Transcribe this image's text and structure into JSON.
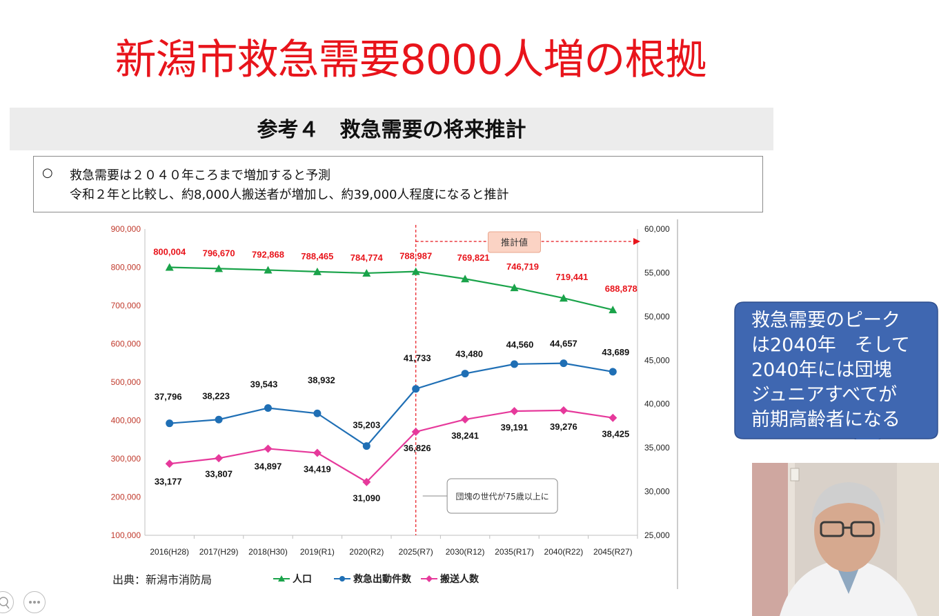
{
  "slide": {
    "title": "新潟市救急需要8000人増の根拠",
    "subtitle": "参考４　救急需要の将来推計",
    "note_bullet": "○",
    "note_line1": "救急需要は２０４０年ころまで増加すると予測",
    "note_line2": "令和２年と比較し、約8,000人搬送者が増加し、約39,000人程度になると推計",
    "source": "出典：新潟市消防局",
    "callout": "救急需要のピーク\nは2040年　そして\n2040年には団塊\nジュニアすべてが\n前期高齢者になる",
    "colors": {
      "title": "#e8141b",
      "callout": "#3f67b1"
    }
  },
  "toolbar": {
    "zoom_icon": "magnifier-icon",
    "more_icon": "ellipsis-icon"
  },
  "chart_data": {
    "type": "line",
    "categories": [
      "2016(H28)",
      "2017(H29)",
      "2018(H30)",
      "2019(R1)",
      "2020(R2)",
      "2025(R7)",
      "2030(R12)",
      "2035(R17)",
      "2040(R22)",
      "2045(R27)"
    ],
    "left_axis": {
      "ylim": [
        100000,
        900000
      ],
      "ticks": [
        "100,000",
        "200,000",
        "300,000",
        "400,000",
        "500,000",
        "600,000",
        "700,000",
        "800,000",
        "900,000"
      ]
    },
    "right_axis": {
      "ylim": [
        25000,
        60000
      ],
      "ticks": [
        "25,000",
        "30,000",
        "35,000",
        "40,000",
        "45,000",
        "50,000",
        "55,000",
        "60,000"
      ]
    },
    "series": [
      {
        "name": "人口",
        "axis": "left",
        "color": "#1aa34a",
        "marker": "triangle",
        "values": [
          800004,
          796670,
          792868,
          788465,
          784774,
          788987,
          769821,
          746719,
          719441,
          688878
        ],
        "labels": [
          "800,004",
          "796,670",
          "792,868",
          "788,465",
          "784,774",
          "788,987",
          "769,821",
          "746,719",
          "719,441",
          "688,878"
        ],
        "label_color": "#e8141b"
      },
      {
        "name": "救急出動件数",
        "axis": "right",
        "color": "#1f6fb5",
        "marker": "circle",
        "values": [
          37796,
          38223,
          39543,
          38932,
          35203,
          41733,
          43480,
          44560,
          44657,
          43689
        ],
        "labels": [
          "37,796",
          "38,223",
          "39,543",
          "38,932",
          "35,203",
          "41,733",
          "43,480",
          "44,560",
          "44,657",
          "43,689"
        ],
        "label_color": "#111111"
      },
      {
        "name": "搬送人数",
        "axis": "right",
        "color": "#e6399b",
        "marker": "diamond",
        "values": [
          33177,
          33807,
          34897,
          34419,
          31090,
          36826,
          38241,
          39191,
          39276,
          38425
        ],
        "labels": [
          "33,177",
          "33,807",
          "34,897",
          "34,419",
          "31,090",
          "36,826",
          "38,241",
          "39,191",
          "39,276",
          "38,425"
        ],
        "label_color": "#111111"
      }
    ],
    "annotations": {
      "forecast": "推計値",
      "baby_boomer": "団塊の世代が75歳以上に"
    },
    "grid": false,
    "legend": "bottom"
  }
}
